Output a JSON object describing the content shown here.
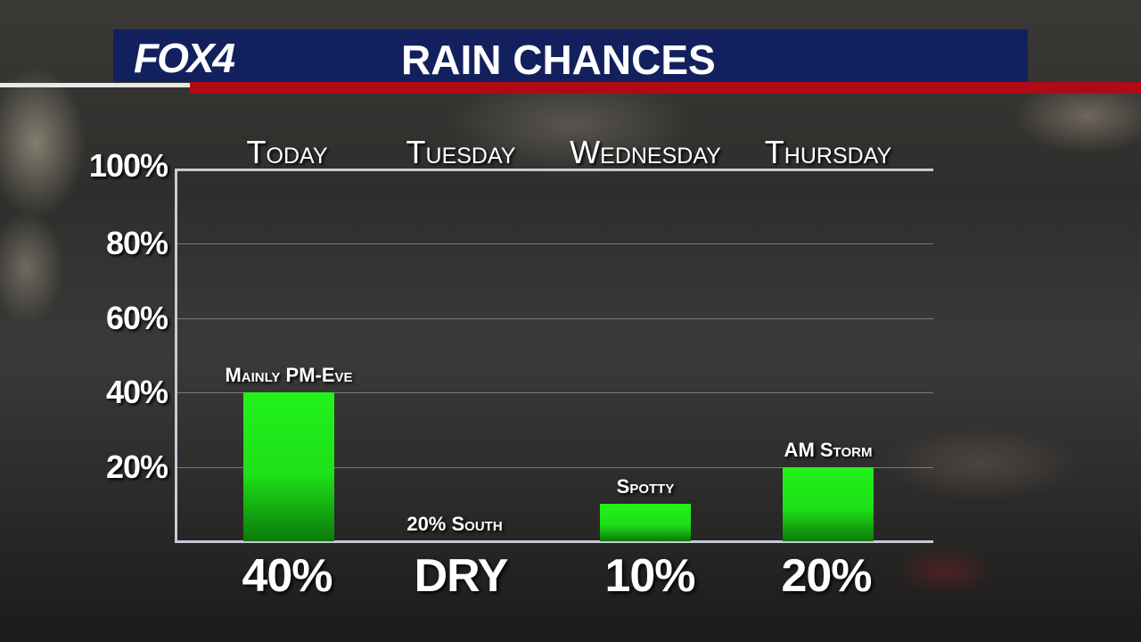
{
  "header": {
    "logo": "FOX4",
    "title": "RAIN CHANCES"
  },
  "colors": {
    "header_blue": "#13205e",
    "accent_red": "#b00a17",
    "bar_green": "#22f21a"
  },
  "chart_data": {
    "type": "bar",
    "title": "RAIN CHANCES",
    "categories": [
      "Today",
      "Tuesday",
      "Wednesday",
      "Thursday"
    ],
    "values": [
      40,
      0,
      10,
      20
    ],
    "value_labels": [
      "40%",
      "DRY",
      "10%",
      "20%"
    ],
    "annotations": [
      "Mainly PM-Eve",
      "20% South",
      "Spotty",
      "AM Storm"
    ],
    "yticks": [
      "20%",
      "40%",
      "60%",
      "80%",
      "100%"
    ],
    "ylim": [
      0,
      100
    ],
    "grid": true
  }
}
